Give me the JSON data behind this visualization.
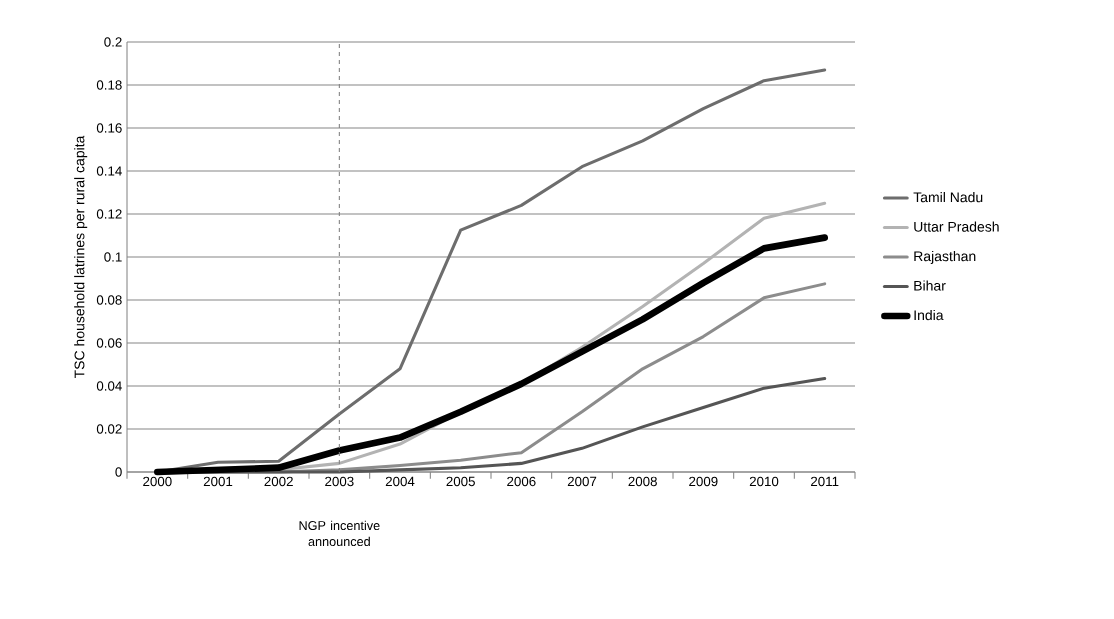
{
  "chart_data": {
    "type": "line",
    "ylabel": "TSC household latrines per rural capita",
    "categories": [
      "2000",
      "2001",
      "2002",
      "2003",
      "2004",
      "2005",
      "2006",
      "2007",
      "2008",
      "2009",
      "2010",
      "2011"
    ],
    "series": [
      {
        "name": "Tamil Nadu",
        "color": "#6d6d6d",
        "values": [
          0,
          0.0045,
          0.005,
          0.027,
          0.048,
          0.1125,
          0.124,
          0.142,
          0.154,
          0.169,
          0.182,
          0.187
        ]
      },
      {
        "name": "Uttar Pradesh",
        "color": "#b3b3b3",
        "values": [
          0,
          0,
          0.001,
          0.004,
          0.013,
          0.028,
          0.041,
          0.058,
          0.077,
          0.097,
          0.118,
          0.125
        ]
      },
      {
        "name": "Rajasthan",
        "color": "#8c8c8c",
        "values": [
          0,
          0,
          0,
          0.001,
          0.003,
          0.0055,
          0.009,
          0.028,
          0.048,
          0.063,
          0.081,
          0.0875
        ]
      },
      {
        "name": "Bihar",
        "color": "#555555",
        "values": [
          0,
          0,
          0,
          0,
          0.001,
          0.002,
          0.004,
          0.011,
          0.021,
          0.03,
          0.039,
          0.0435
        ]
      },
      {
        "name": "India",
        "color": "#000000",
        "values": [
          0,
          0.001,
          0.002,
          0.01,
          0.016,
          0.028,
          0.041,
          0.056,
          0.071,
          0.088,
          0.104,
          0.109
        ]
      }
    ],
    "ylim": [
      0,
      0.2
    ],
    "yticks": [
      0,
      0.02,
      0.04,
      0.06,
      0.08,
      0.1,
      0.12,
      0.14,
      0.16,
      0.18,
      0.2
    ],
    "annotations": [
      "NGP incentive announced"
    ],
    "grid": "y",
    "legend": "right",
    "marker": "none",
    "line_style": "solid",
    "ref_lines": [
      {
        "axis": "x",
        "value": "2003",
        "color": "#808080",
        "line_style": "dashed"
      }
    ]
  }
}
